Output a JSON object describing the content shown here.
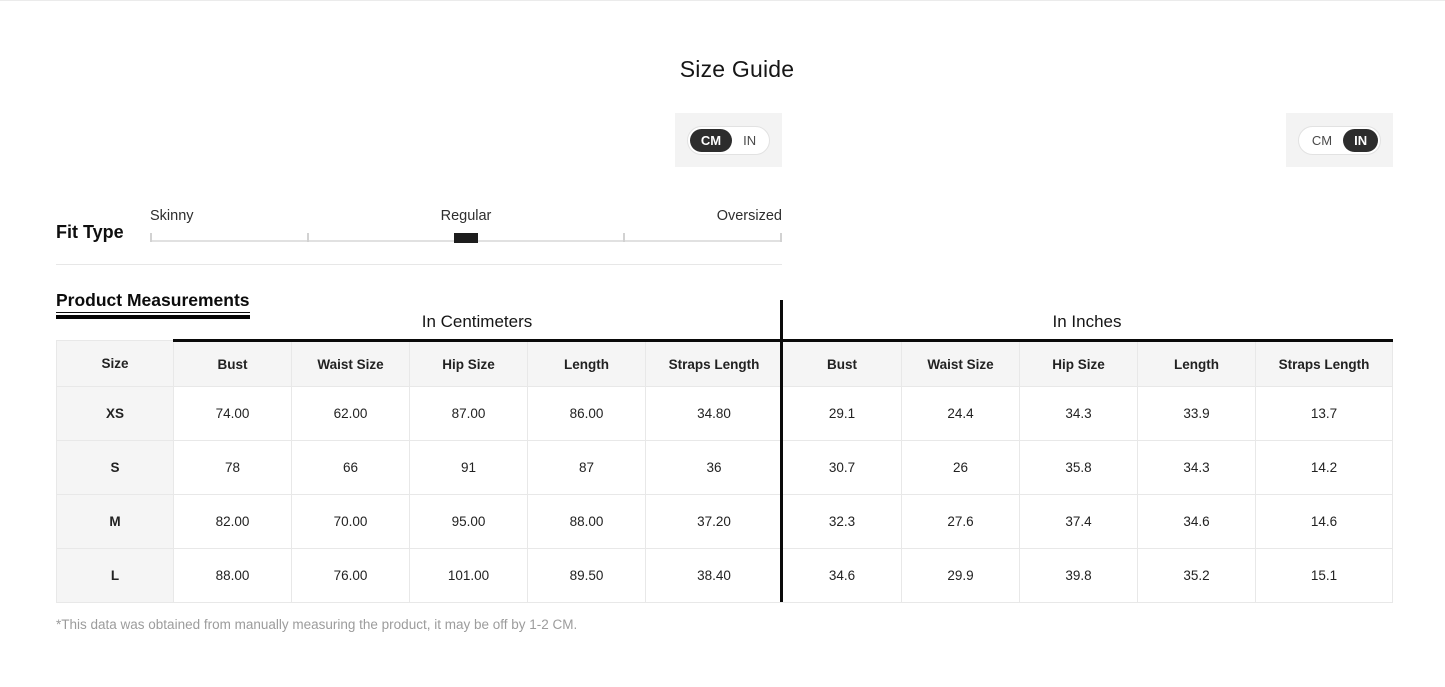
{
  "page": {
    "title": "Size Guide",
    "footnote": "*This data was obtained from manually measuring the product, it may be off by 1-2 CM."
  },
  "unit_toggles": {
    "cm_label": "CM",
    "in_label": "IN",
    "left_toggle_selected": "CM",
    "right_toggle_selected": "IN"
  },
  "fit_type": {
    "label": "Fit Type",
    "options": [
      "Skinny",
      "Regular",
      "Oversized"
    ],
    "selected": "Regular"
  },
  "measurements": {
    "heading": "Product Measurements",
    "cm_section_title": "In Centimeters",
    "in_section_title": "In Inches",
    "size_header": "Size",
    "column_headers": [
      "Bust",
      "Waist Size",
      "Hip Size",
      "Length",
      "Straps Length"
    ],
    "rows": [
      {
        "size": "XS",
        "cm": [
          "74.00",
          "62.00",
          "87.00",
          "86.00",
          "34.80"
        ],
        "in": [
          "29.1",
          "24.4",
          "34.3",
          "33.9",
          "13.7"
        ]
      },
      {
        "size": "S",
        "cm": [
          "78",
          "66",
          "91",
          "87",
          "36"
        ],
        "in": [
          "30.7",
          "26",
          "35.8",
          "34.3",
          "14.2"
        ]
      },
      {
        "size": "M",
        "cm": [
          "82.00",
          "70.00",
          "95.00",
          "88.00",
          "37.20"
        ],
        "in": [
          "32.3",
          "27.6",
          "37.4",
          "34.6",
          "14.6"
        ]
      },
      {
        "size": "L",
        "cm": [
          "88.00",
          "76.00",
          "101.00",
          "89.50",
          "38.40"
        ],
        "in": [
          "34.6",
          "29.9",
          "39.8",
          "35.2",
          "15.1"
        ]
      }
    ]
  },
  "colors": {
    "accent_dark": "#2d2d2d",
    "table_line_black": "#0a0a0a",
    "header_bg": "#f5f5f5",
    "cell_border": "#e8e8e8",
    "footnote_gray": "#9c9c9c",
    "toggle_box_bg": "#f3f3f3"
  }
}
